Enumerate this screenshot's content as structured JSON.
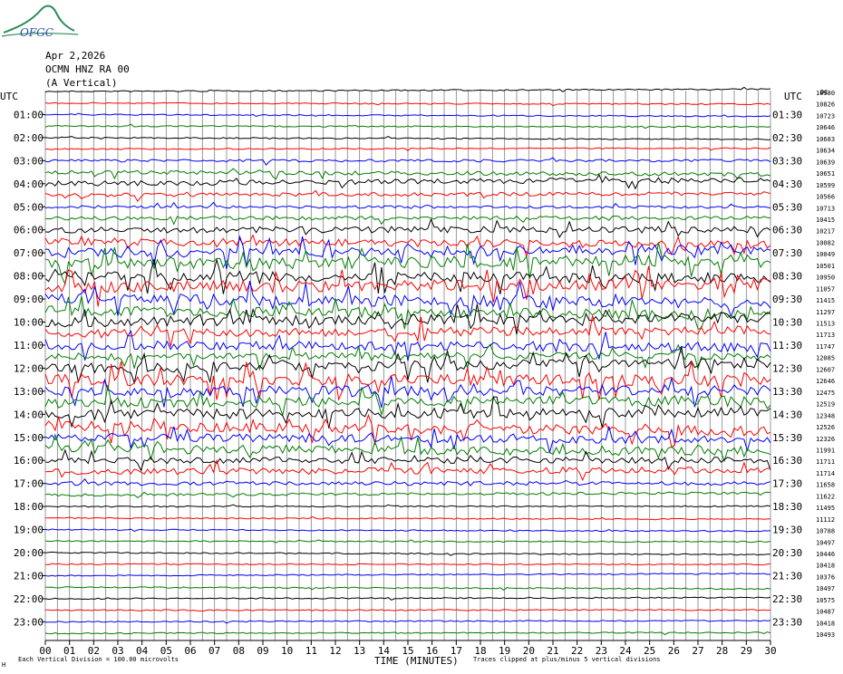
{
  "logo_text": "OFGC",
  "header": {
    "date": "Apr 2,2026",
    "station": "OCMN HNZ RA 00",
    "component": "(A Vertical)"
  },
  "left_axis_title": "UTC",
  "right_axis_title": "UTC",
  "right_col_header": "DC",
  "footer": {
    "scale_note": "Each Vertical Division = 100.00 microvolts",
    "clip_note": "Traces clipped at plus/minus 5 vertical divisions",
    "corner_mark": "H"
  },
  "colors": {
    "black": "#000000",
    "red": "#ff0000",
    "blue": "#0000ff",
    "green": "#007f00",
    "grid": "#808080"
  },
  "chart_data": {
    "type": "line",
    "description_type": "helicorder",
    "xlabel": "TIME (MINUTES)",
    "x_ticks": [
      "00",
      "01",
      "02",
      "03",
      "04",
      "05",
      "06",
      "07",
      "08",
      "09",
      "10",
      "11",
      "12",
      "13",
      "14",
      "15",
      "16",
      "17",
      "18",
      "19",
      "20",
      "21",
      "22",
      "23",
      "24",
      "25",
      "26",
      "27",
      "28",
      "29",
      "30"
    ],
    "xlim": [
      0,
      30
    ],
    "left_labels": [
      "",
      "01:00",
      "02:00",
      "03:00",
      "04:00",
      "05:00",
      "06:00",
      "07:00",
      "08:00",
      "09:00",
      "10:00",
      "11:00",
      "12:00",
      "13:00",
      "14:00",
      "15:00",
      "16:00",
      "17:00",
      "18:00",
      "19:00",
      "20:00",
      "21:00",
      "22:00",
      "23:00"
    ],
    "right_labels": [
      "",
      "01:30",
      "02:30",
      "03:30",
      "04:30",
      "05:30",
      "06:30",
      "07:30",
      "08:30",
      "09:30",
      "10:30",
      "11:30",
      "12:30",
      "13:30",
      "14:30",
      "15:30",
      "16:30",
      "17:30",
      "18:30",
      "19:30",
      "20:30",
      "21:30",
      "22:30",
      "23:30"
    ],
    "dc_offsets": [
      "10980",
      "10826",
      "10723",
      "10646",
      "10683",
      "10634",
      "10639",
      "10651",
      "10599",
      "10566",
      "10713",
      "10415",
      "10217",
      "10082",
      "10049",
      "10501",
      "10950",
      "11057",
      "11415",
      "11297",
      "11513",
      "11713",
      "11747",
      "12085",
      "12607",
      "12646",
      "12475",
      "12519",
      "12348",
      "12526",
      "12326",
      "11991",
      "11711",
      "11714",
      "11658",
      "11622",
      "11495",
      "11112",
      "10788",
      "10497",
      "10446",
      "10418",
      "10376",
      "10497",
      "10575",
      "10487",
      "10418",
      "10493"
    ],
    "trace_colors": [
      "black",
      "red",
      "blue",
      "green"
    ],
    "trace_count": 48,
    "noise_level": [
      1,
      1,
      1,
      1,
      1,
      1,
      2,
      3,
      4,
      3,
      2,
      3,
      5,
      6,
      8,
      9,
      8,
      9,
      9,
      8,
      8,
      7,
      7,
      6,
      8,
      9,
      8,
      8,
      8,
      8,
      6,
      7,
      5,
      5,
      3,
      2,
      1,
      1,
      1,
      1,
      1,
      1,
      1,
      1,
      1,
      1,
      1,
      1
    ]
  }
}
